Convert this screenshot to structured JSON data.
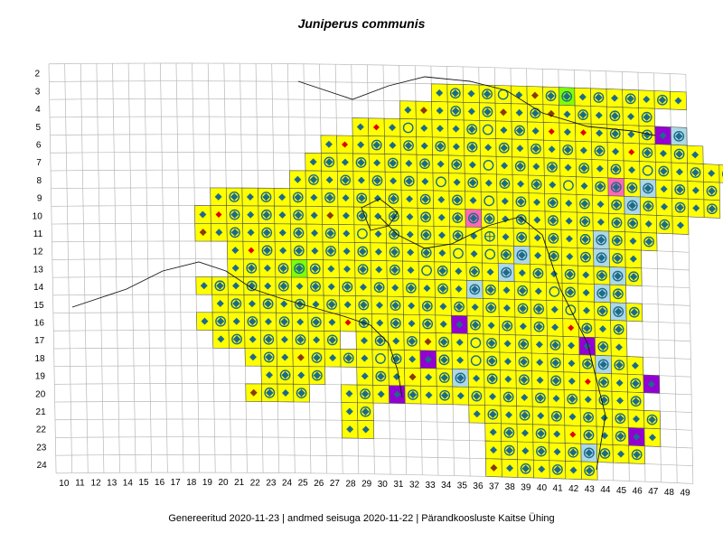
{
  "title": "Juniperus communis",
  "footer": "Genereeritud 2020-11-23  |  andmed seisuga 2020-11-22  |  Pärandkoosluste Kaitse Ühing",
  "grid": {
    "columns": [
      "10",
      "11",
      "12",
      "13",
      "14",
      "15",
      "16",
      "17",
      "18",
      "19",
      "20",
      "21",
      "22",
      "23",
      "24",
      "25",
      "26",
      "27",
      "28",
      "29",
      "30",
      "31",
      "32",
      "33",
      "34",
      "35",
      "36",
      "37",
      "38",
      "39",
      "40",
      "41",
      "42",
      "43",
      "44",
      "45",
      "46",
      "47",
      "48",
      "49"
    ],
    "rows": [
      "2",
      "3",
      "4",
      "5",
      "6",
      "7",
      "8",
      "9",
      "10",
      "11",
      "12",
      "13",
      "14",
      "15",
      "16",
      "17",
      "18",
      "19",
      "20",
      "21",
      "22",
      "23",
      "24"
    ]
  },
  "colors": {
    "grid_line": "#b8b8b8",
    "occupied_fill": "#ffff00",
    "light_blue_fill": "#add8e6",
    "green_fill": "#7fff00",
    "pink_fill": "#ff69b4",
    "purple_fill": "#9400d3",
    "diamond_teal": "#1d6b8a",
    "diamond_brown": "#8b3a0f",
    "diamond_red": "#e00000",
    "coast_line": "#111111"
  },
  "symbols": [
    "diamond-in-circle",
    "diamond",
    "circle",
    "circle-cross",
    "brown-diamond",
    "red-diamond"
  ],
  "map_rows": {
    "3": "                        ywywoybwgywywywy  ",
    "4": "                      ybywywbywbywywyw   ",
    "5": "                   yayoyyywoywyayaywywrl",
    "6": "                 yaywywywywywywywywyawywy",
    "7": "                ywywywywywyoywywywywyowywywy",
    "8": "               ywywywywyoywywywyoywpwlywyw",
    "9": "          ywywywywywywywywyoywywywywlwywyw",
    "10": "         yawywywybywywywywpwywywywywwywy",
    "11": "         bywywywywyoywywywycywywywlwyw",
    "12": "           yawywywywywywyoyowlywywlwy",
    "13": "           ywywgwyywywyowywylywywywlw",
    "14": "         ywywywywywywywywylwywyowylw",
    "15": "          ywywywywywywywywywywwyoywlw",
    "16": "         ywywywywyawywywyrwywywyawyw",
    "17": "          ywywywyw ywywbwyowywywyrwy",
    "18": "            ywybwywyowyrwyowywywywlwy",
    "19": "             ywyw  ywybywlywywywyawywr",
    "20": "            bwyw  ywyrwywywywywywywyw",
    "21": "                  yw      ywywywywywyw",
    "22": "                  yy       ywywyawywry",
    "23": "                           ywywywlwyw",
    "24": "                           bywywyw"
  }
}
